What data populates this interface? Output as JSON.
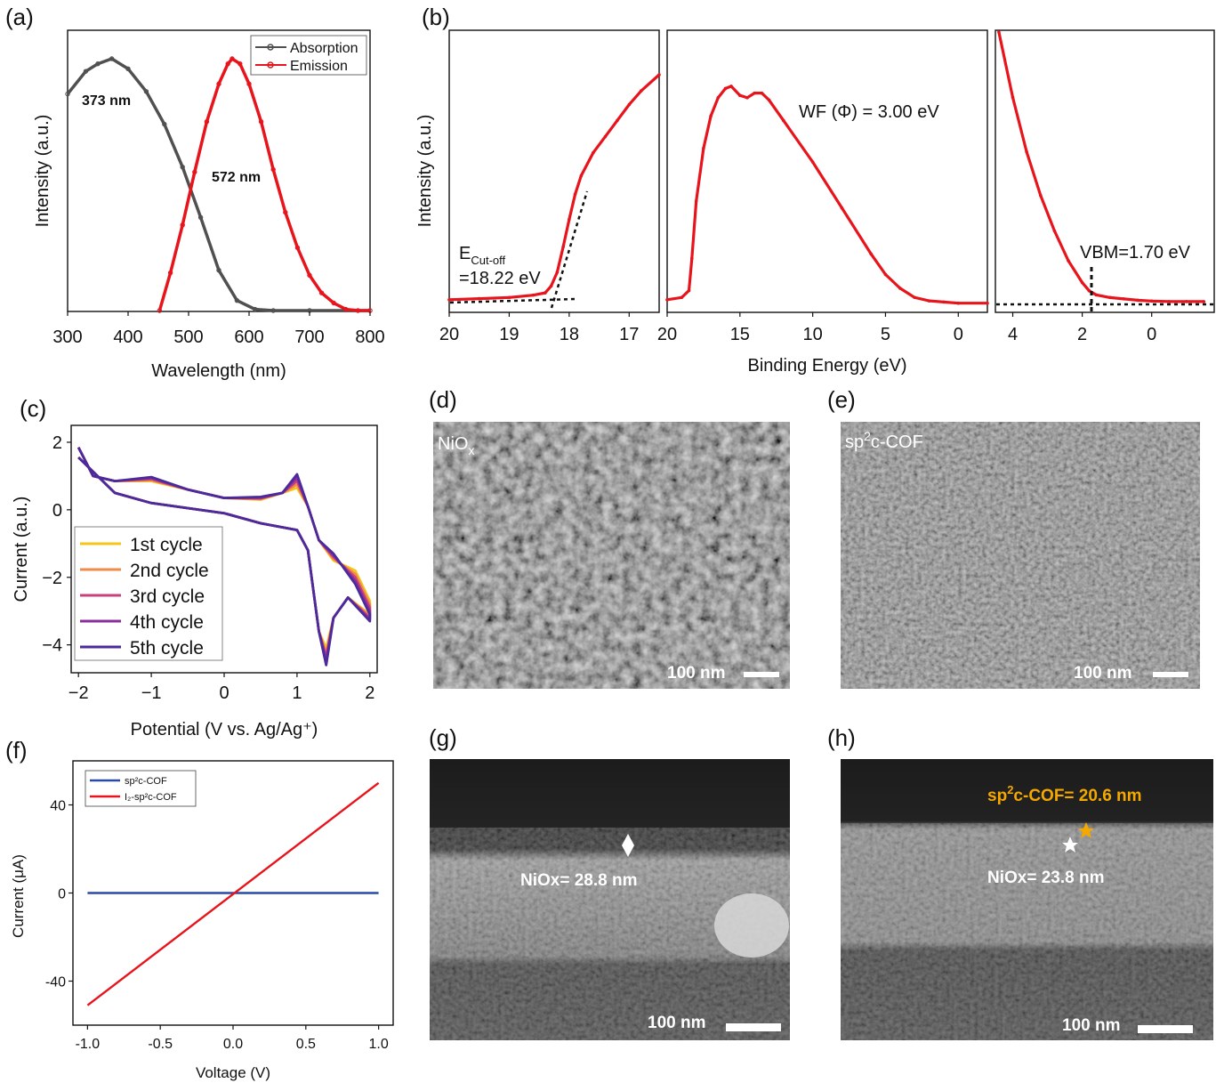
{
  "panels": {
    "a": {
      "label": "(a)"
    },
    "b": {
      "label": "(b)"
    },
    "c": {
      "label": "(c)"
    },
    "d": {
      "label": "(d)",
      "image_label": "NiO",
      "image_label_sub": "x",
      "scale_bar": "100 nm"
    },
    "e": {
      "label": "(e)",
      "image_label": "sp",
      "image_label_sup": "2",
      "image_label_rest": "c-COF",
      "scale_bar": "100 nm"
    },
    "f": {
      "label": "(f)"
    },
    "g": {
      "label": "(g)",
      "annotation": "NiOx= 28.8 nm",
      "scale_bar": "100 nm"
    },
    "h": {
      "label": "(h)",
      "annotation_cof_pre": "sp",
      "annotation_cof_sup": "2",
      "annotation_cof_post": "c-COF= 20.6 nm",
      "annotation_niox": "NiOx= 23.8 nm",
      "scale_bar": "100 nm"
    }
  },
  "colors": {
    "absorption": "#505050",
    "emission": "#e8141c",
    "ups": "#e8141c",
    "cycles": [
      "#f5c518",
      "#ef8a4a",
      "#c9407e",
      "#8a2f9a",
      "#4b2a9c"
    ],
    "iv_cof": "#2a4aa8",
    "iv_i2cof": "#e8141c",
    "sem_label_yellow": "#f5a800"
  },
  "chart_data": [
    {
      "panel": "a",
      "type": "line",
      "xlabel": "Wavelength (nm)",
      "ylabel": "Intensity (a.u.)",
      "xlim": [
        300,
        800
      ],
      "xticks": [
        "300",
        "400",
        "500",
        "600",
        "700",
        "800"
      ],
      "legend": "top-right",
      "annotations": [
        "373 nm",
        "572 nm"
      ],
      "series": [
        {
          "name": "Absorption",
          "x": [
            300,
            330,
            350,
            373,
            400,
            430,
            460,
            490,
            520,
            550,
            580,
            610,
            640,
            700,
            800
          ],
          "y": [
            0.86,
            0.95,
            0.98,
            1.0,
            0.96,
            0.87,
            0.74,
            0.57,
            0.37,
            0.16,
            0.04,
            0.005,
            0.0,
            0.0,
            0.0
          ]
        },
        {
          "name": "Emission",
          "x": [
            452,
            470,
            490,
            510,
            530,
            550,
            565,
            572,
            585,
            600,
            620,
            640,
            660,
            680,
            700,
            720,
            740,
            760,
            780,
            800
          ],
          "y": [
            0.0,
            0.15,
            0.34,
            0.55,
            0.75,
            0.9,
            0.98,
            1.0,
            0.98,
            0.9,
            0.75,
            0.56,
            0.39,
            0.25,
            0.14,
            0.07,
            0.03,
            0.005,
            0.0,
            0.0
          ]
        }
      ]
    },
    {
      "panel": "b",
      "type": "line",
      "xlabel": "Binding Energy (eV)",
      "ylabel": "Intensity (a.u.)",
      "subplots": [
        {
          "xlim": [
            20,
            16.5
          ],
          "xticks": [
            "20",
            "19",
            "18",
            "17"
          ],
          "annotation_main": "E",
          "annotation_sub": "Cut-off",
          "annotation_value": "=18.22 eV",
          "x": [
            20,
            19.5,
            19,
            18.6,
            18.4,
            18.3,
            18.2,
            18.1,
            18.0,
            17.9,
            17.8,
            17.6,
            17.4,
            17.2,
            17.0,
            16.8,
            16.5
          ],
          "y": [
            0.02,
            0.025,
            0.03,
            0.04,
            0.05,
            0.08,
            0.14,
            0.25,
            0.37,
            0.48,
            0.56,
            0.66,
            0.73,
            0.8,
            0.87,
            0.93,
            1.0
          ]
        },
        {
          "xlim": [
            20,
            -2
          ],
          "xticks": [
            "20",
            "15",
            "10",
            "5",
            "0"
          ],
          "annotation": "WF (Φ) = 3.00 eV",
          "x": [
            20,
            19,
            18.5,
            18.3,
            18,
            17.5,
            17,
            16.5,
            16,
            15.6,
            15,
            14.5,
            14,
            13.5,
            13,
            12,
            10,
            8,
            6,
            5,
            4,
            3,
            2,
            1,
            0,
            -2
          ],
          "y": [
            0.02,
            0.03,
            0.06,
            0.2,
            0.45,
            0.68,
            0.82,
            0.9,
            0.94,
            0.95,
            0.91,
            0.9,
            0.92,
            0.92,
            0.89,
            0.8,
            0.62,
            0.42,
            0.22,
            0.13,
            0.07,
            0.03,
            0.015,
            0.01,
            0.005,
            0.005
          ]
        },
        {
          "xlim": [
            4.5,
            -1.8
          ],
          "xticks": [
            "4",
            "2",
            "0"
          ],
          "annotation": "VBM=1.70 eV",
          "x": [
            4.4,
            4.0,
            3.6,
            3.2,
            2.8,
            2.4,
            2.0,
            1.8,
            1.6,
            1.2,
            0.8,
            0.4,
            0,
            -0.5,
            -1.0,
            -1.5
          ],
          "y": [
            1.0,
            0.76,
            0.56,
            0.4,
            0.27,
            0.16,
            0.08,
            0.05,
            0.035,
            0.025,
            0.02,
            0.015,
            0.012,
            0.01,
            0.01,
            0.01
          ]
        }
      ]
    },
    {
      "panel": "c",
      "type": "line",
      "xlabel": "Potential (V vs. Ag/Ag⁺)",
      "ylabel": "Current (a.u.)",
      "xlim": [
        -2.1,
        2.1
      ],
      "ylim": [
        -4.8,
        2.5
      ],
      "xticks": [
        "−2",
        "−1",
        "0",
        "1",
        "2"
      ],
      "yticks": [
        "2",
        "0",
        "−2",
        "−4"
      ],
      "legend": "bottom-left",
      "series_names": [
        "1st cycle",
        "2nd cycle",
        "3rd cycle",
        "4th cycle",
        "5th cycle"
      ],
      "peak_ox_y": [
        0.65,
        0.75,
        0.85,
        0.95,
        1.05
      ],
      "peak_red_y": [
        -4.1,
        -4.25,
        -4.35,
        -4.45,
        -4.6
      ]
    },
    {
      "panel": "f",
      "type": "line",
      "xlabel": "Voltage (V)",
      "ylabel": "Current (μA)",
      "xlim": [
        -1.1,
        1.1
      ],
      "ylim": [
        -60,
        60
      ],
      "xticks": [
        "-1.0",
        "-0.5",
        "0.0",
        "0.5",
        "1.0"
      ],
      "yticks": [
        "40",
        "0",
        "-40"
      ],
      "legend": "top-left",
      "series": [
        {
          "name": "sp²c-COF",
          "x": [
            -1.0,
            1.0
          ],
          "y": [
            0.0,
            0.0
          ]
        },
        {
          "name": "I₂-sp²c-COF",
          "x": [
            -1.0,
            1.0
          ],
          "y": [
            -51,
            50
          ]
        }
      ]
    }
  ]
}
